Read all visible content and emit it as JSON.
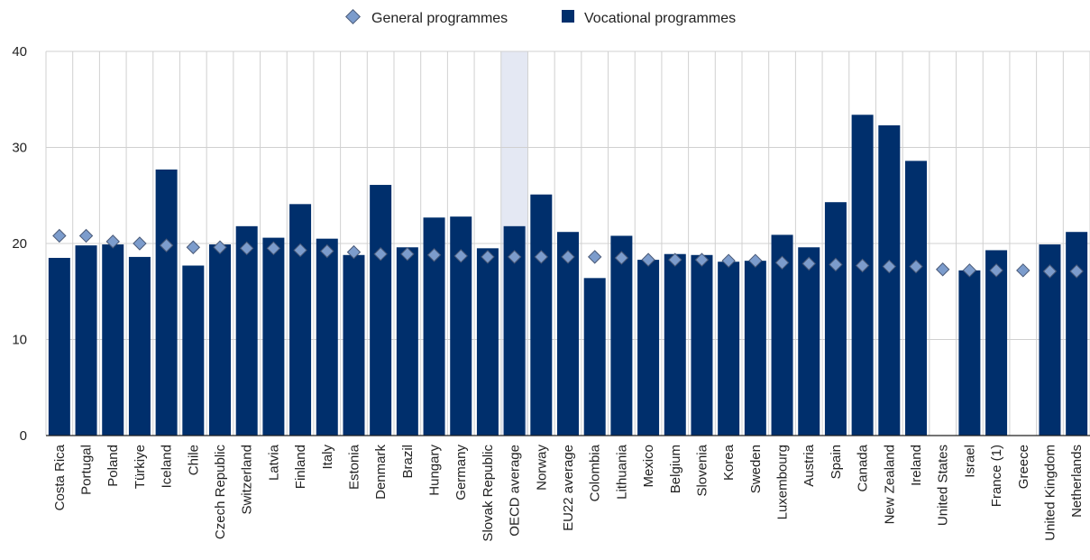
{
  "chart_data": {
    "type": "bar",
    "categories": [
      "Costa Rica",
      "Portugal",
      "Poland",
      "Türkiye",
      "Iceland",
      "Chile",
      "Czech Republic",
      "Switzerland",
      "Latvia",
      "Finland",
      "Italy",
      "Estonia",
      "Denmark",
      "Brazil",
      "Hungary",
      "Germany",
      "Slovak Republic",
      "OECD average",
      "Norway",
      "EU22 average",
      "Colombia",
      "Lithuania",
      "Mexico",
      "Belgium",
      "Slovenia",
      "Korea",
      "Sweden",
      "Luxembourg",
      "Austria",
      "Spain",
      "Canada",
      "New Zealand",
      "Ireland",
      "United States",
      "Israel",
      "France (1)",
      "Greece",
      "United Kingdom",
      "Netherlands"
    ],
    "series": [
      {
        "name": "General programmes",
        "marker": "diamond",
        "color": "#7c9ccc",
        "values": [
          20.8,
          20.8,
          20.2,
          20.0,
          19.8,
          19.6,
          19.6,
          19.5,
          19.5,
          19.3,
          19.2,
          19.1,
          18.9,
          18.9,
          18.8,
          18.7,
          18.6,
          18.6,
          18.6,
          18.6,
          18.6,
          18.5,
          18.3,
          18.3,
          18.3,
          18.2,
          18.2,
          18.0,
          17.9,
          17.8,
          17.7,
          17.6,
          17.6,
          17.3,
          17.2,
          17.2,
          17.2,
          17.1,
          17.1
        ]
      },
      {
        "name": "Vocational programmes",
        "marker": "bar",
        "color": "#002f6c",
        "values": [
          18.5,
          19.8,
          19.9,
          18.6,
          27.7,
          17.7,
          19.9,
          21.8,
          20.6,
          24.1,
          20.5,
          18.8,
          26.1,
          19.6,
          22.7,
          22.8,
          19.5,
          21.8,
          25.1,
          21.2,
          16.4,
          20.8,
          18.3,
          18.9,
          18.8,
          18.1,
          18.2,
          20.9,
          19.6,
          24.3,
          33.4,
          32.3,
          28.6,
          null,
          17.2,
          19.3,
          null,
          19.9,
          21.2
        ]
      }
    ],
    "highlight_category": "OECD average",
    "highlight_color": "#e4e8f3",
    "yticks": [
      0,
      10,
      20,
      30,
      40
    ],
    "ylim": [
      0,
      40
    ],
    "xlabel": "",
    "ylabel": "",
    "grid": true,
    "legend_position": "top-center"
  }
}
